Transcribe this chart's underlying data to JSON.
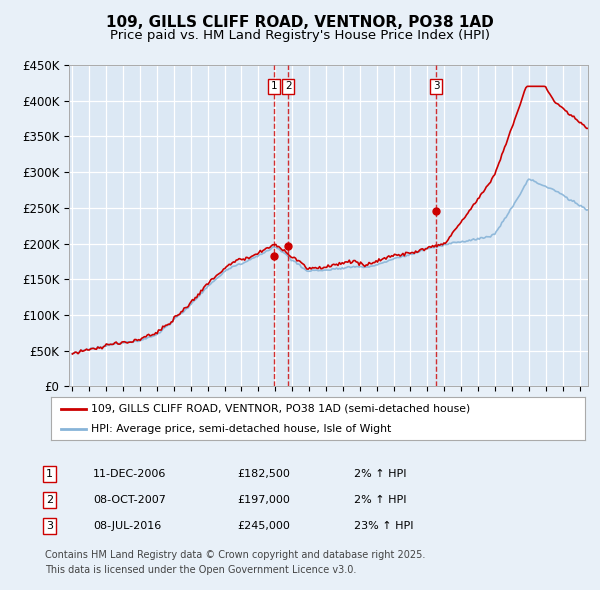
{
  "title": "109, GILLS CLIFF ROAD, VENTNOR, PO38 1AD",
  "subtitle": "Price paid vs. HM Land Registry's House Price Index (HPI)",
  "ylim": [
    0,
    450000
  ],
  "yticks": [
    0,
    50000,
    100000,
    150000,
    200000,
    250000,
    300000,
    350000,
    400000,
    450000
  ],
  "ytick_labels": [
    "£0",
    "£50K",
    "£100K",
    "£150K",
    "£200K",
    "£250K",
    "£300K",
    "£350K",
    "£400K",
    "£450K"
  ],
  "xlim_start": 1994.8,
  "xlim_end": 2025.5,
  "background_color": "#e8f0f8",
  "plot_bg_color": "#dce8f4",
  "grid_color": "#ffffff",
  "red_line_color": "#cc0000",
  "blue_line_color": "#88b4d8",
  "vline_color": "#cc0000",
  "vline_dates": [
    2006.94,
    2007.77,
    2016.52
  ],
  "vline_labels": [
    "1",
    "2",
    "3"
  ],
  "sale_points_x": [
    2006.94,
    2007.77,
    2016.52
  ],
  "sale_points_y": [
    182500,
    197000,
    245000
  ],
  "legend_entries": [
    "109, GILLS CLIFF ROAD, VENTNOR, PO38 1AD (semi-detached house)",
    "HPI: Average price, semi-detached house, Isle of Wight"
  ],
  "table_rows": [
    [
      "1",
      "11-DEC-2006",
      "£182,500",
      "2% ↑ HPI"
    ],
    [
      "2",
      "08-OCT-2007",
      "£197,000",
      "2% ↑ HPI"
    ],
    [
      "3",
      "08-JUL-2016",
      "£245,000",
      "23% ↑ HPI"
    ]
  ],
  "footer": "Contains HM Land Registry data © Crown copyright and database right 2025.\nThis data is licensed under the Open Government Licence v3.0.",
  "title_fontsize": 11,
  "subtitle_fontsize": 9.5
}
